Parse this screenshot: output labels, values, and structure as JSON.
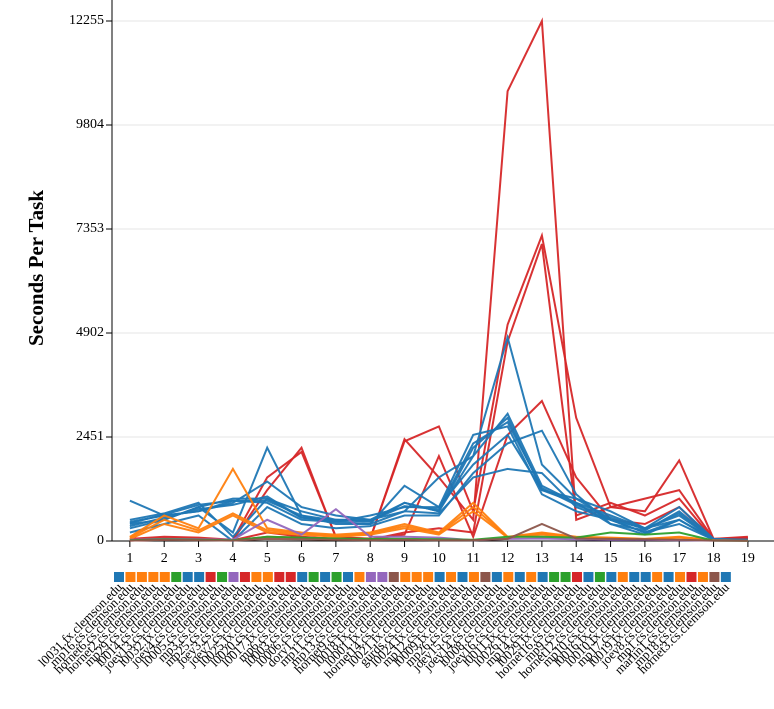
{
  "chart_data": {
    "type": "line",
    "y_label": "Seconds Per Task",
    "x": [
      1,
      2,
      3,
      4,
      5,
      6,
      7,
      8,
      9,
      10,
      11,
      12,
      13,
      14,
      15,
      16,
      17,
      18,
      19
    ],
    "xlim": [
      0.48,
      19.76
    ],
    "ylim": [
      0,
      12750
    ],
    "yticks": [
      0,
      2451,
      4902,
      7353,
      9804,
      12255
    ],
    "grid": true,
    "series": [
      {
        "color": "#d62728",
        "values": [
          50,
          100,
          80,
          30,
          1500,
          2100,
          100,
          50,
          2400,
          1500,
          500,
          10600,
          12255,
          500,
          800,
          1000,
          1200,
          50,
          80
        ]
      },
      {
        "color": "#d62728",
        "values": [
          30,
          60,
          50,
          20,
          1200,
          2200,
          80,
          60,
          2350,
          2700,
          700,
          5100,
          7200,
          2900,
          800,
          700,
          1900,
          50,
          100
        ]
      },
      {
        "color": "#d62728",
        "values": [
          20,
          40,
          30,
          20,
          200,
          100,
          50,
          30,
          200,
          300,
          200,
          4700,
          7000,
          600,
          900,
          600,
          1000,
          30,
          60
        ]
      },
      {
        "color": "#d62728",
        "values": [
          10,
          30,
          40,
          10,
          100,
          80,
          60,
          40,
          150,
          2000,
          100,
          2500,
          3300,
          1500,
          500,
          400,
          800,
          20,
          40
        ]
      },
      {
        "color": "#1f77b4",
        "values": [
          950,
          600,
          700,
          900,
          1400,
          800,
          600,
          500,
          700,
          1500,
          2000,
          4800,
          1800,
          1000,
          700,
          300,
          800,
          50,
          30
        ]
      },
      {
        "color": "#1f77b4",
        "values": [
          400,
          500,
          800,
          1000,
          1000,
          700,
          500,
          500,
          900,
          700,
          2000,
          3000,
          1300,
          900,
          600,
          300,
          600,
          40,
          20
        ]
      },
      {
        "color": "#1f77b4",
        "values": [
          300,
          500,
          800,
          200,
          2200,
          600,
          400,
          400,
          1300,
          800,
          1800,
          2500,
          1200,
          1000,
          500,
          200,
          500,
          30,
          20
        ]
      },
      {
        "color": "#1f77b4",
        "values": [
          500,
          650,
          900,
          100,
          1000,
          550,
          450,
          600,
          800,
          800,
          2500,
          2700,
          1100,
          700,
          500,
          300,
          500,
          40,
          30
        ]
      },
      {
        "color": "#1f77b4",
        "values": [
          450,
          600,
          700,
          950,
          900,
          500,
          450,
          400,
          700,
          650,
          1500,
          1700,
          1600,
          800,
          500,
          200,
          400,
          30,
          20
        ]
      },
      {
        "color": "#1f77b4",
        "values": [
          350,
          550,
          750,
          850,
          1050,
          550,
          500,
          450,
          900,
          700,
          2200,
          2900,
          1200,
          900,
          400,
          250,
          700,
          40,
          25
        ]
      },
      {
        "color": "#1f77b4",
        "values": [
          200,
          400,
          600,
          0,
          800,
          400,
          300,
          350,
          600,
          600,
          1600,
          2300,
          2600,
          1100,
          400,
          150,
          500,
          30,
          20
        ]
      },
      {
        "color": "#1f77b4",
        "values": [
          420,
          620,
          850,
          950,
          950,
          600,
          480,
          480,
          820,
          750,
          2300,
          2800,
          1250,
          850,
          550,
          280,
          650,
          35,
          22
        ]
      },
      {
        "color": "#ff7f0e",
        "values": [
          100,
          600,
          300,
          1700,
          300,
          200,
          150,
          200,
          400,
          200,
          900,
          100,
          200,
          100,
          80,
          50,
          100,
          20,
          10
        ]
      },
      {
        "color": "#ff7f0e",
        "values": [
          50,
          400,
          200,
          600,
          200,
          150,
          100,
          150,
          300,
          150,
          700,
          80,
          150,
          80,
          60,
          40,
          80,
          15,
          10
        ]
      },
      {
        "color": "#ff7f0e",
        "values": [
          80,
          500,
          250,
          650,
          250,
          180,
          120,
          180,
          350,
          180,
          800,
          90,
          180,
          90,
          70,
          45,
          90,
          18,
          10
        ]
      },
      {
        "color": "#9467bd",
        "values": [
          30,
          50,
          40,
          30,
          500,
          150,
          750,
          100,
          100,
          80,
          20,
          50,
          60,
          40,
          30,
          30,
          20,
          10,
          5
        ]
      },
      {
        "color": "#2ca02c",
        "values": [
          20,
          40,
          30,
          20,
          100,
          80,
          60,
          50,
          50,
          40,
          30,
          100,
          100,
          80,
          200,
          150,
          200,
          10,
          5
        ]
      },
      {
        "color": "#8c564b",
        "values": [
          10,
          30,
          20,
          10,
          50,
          40,
          30,
          20,
          30,
          20,
          20,
          50,
          400,
          60,
          50,
          40,
          30,
          10,
          5
        ]
      }
    ],
    "hosts": [
      {
        "name": "l0031.fx.clemson.edu",
        "color": "#1f77b4"
      },
      {
        "name": "mp16.cs.clemson.edu",
        "color": "#ff7f0e"
      },
      {
        "name": "hornet6.cs.clemson.edu",
        "color": "#ff7f0e"
      },
      {
        "name": "hornet2.cs.clemson.edu",
        "color": "#ff7f0e"
      },
      {
        "name": "mp29.cs.clemson.edu",
        "color": "#ff7f0e"
      },
      {
        "name": "l0014.cs.clemson.edu",
        "color": "#2ca02c"
      },
      {
        "name": "joey13.cs.clemson.edu",
        "color": "#1f77b4"
      },
      {
        "name": "l0032.fx.clemson.edu",
        "color": "#1f77b4"
      },
      {
        "name": "joey4.cs.clemson.edu",
        "color": "#d62728"
      },
      {
        "name": "l0005.cs.clemson.edu",
        "color": "#2ca02c"
      },
      {
        "name": "mp3.cs.clemson.edu",
        "color": "#9467bd"
      },
      {
        "name": "mp25.cs.clemson.edu",
        "color": "#d62728"
      },
      {
        "name": "joey3.cs.clemson.edu",
        "color": "#ff7f0e"
      },
      {
        "name": "joey7.cs.clemson.edu",
        "color": "#ff7f0e"
      },
      {
        "name": "l0025.fx.clemson.edu",
        "color": "#d62728"
      },
      {
        "name": "l0020.cs.clemson.edu",
        "color": "#d62728"
      },
      {
        "name": "l0017.fx.clemson.edu",
        "color": "#1f77b4"
      },
      {
        "name": "mp6.cs.clemson.edu",
        "color": "#2ca02c"
      },
      {
        "name": "l0003.cs.clemson.edu",
        "color": "#1f77b4"
      },
      {
        "name": "l0006.cs.clemson.edu",
        "color": "#2ca02c"
      },
      {
        "name": "dory1.cs.clemson.edu",
        "color": "#1f77b4"
      },
      {
        "name": "mp11.cs.clemson.edu",
        "color": "#ff7f0e"
      },
      {
        "name": "mp13.cs.clemson.edu",
        "color": "#9467bd"
      },
      {
        "name": "hornet9.cs.clemson.edu",
        "color": "#9467bd"
      },
      {
        "name": "l0018.fx.clemson.edu",
        "color": "#8c564b"
      },
      {
        "name": "l0001.fx.clemson.edu",
        "color": "#ff7f0e"
      },
      {
        "name": "hornet14.cs.clemson.edu",
        "color": "#ff7f0e"
      },
      {
        "name": "l0021.fx.clemson.edu",
        "color": "#ff7f0e"
      },
      {
        "name": "gurds.cs.clemson.edu",
        "color": "#1f77b4"
      },
      {
        "name": "l0024.fx.clemson.edu",
        "color": "#ff7f0e"
      },
      {
        "name": "mp12.cs.clemson.edu",
        "color": "#1f77b4"
      },
      {
        "name": "l0009.fx.clemson.edu",
        "color": "#ff7f0e"
      },
      {
        "name": "mp26.cs.clemson.edu",
        "color": "#8c564b"
      },
      {
        "name": "joey15.cs.clemson.edu",
        "color": "#1f77b4"
      },
      {
        "name": "joey14.cs.clemson.edu",
        "color": "#ff7f0e"
      },
      {
        "name": "l0008.cs.clemson.edu",
        "color": "#1f77b4"
      },
      {
        "name": "joey16.cs.clemson.edu",
        "color": "#ff7f0e"
      },
      {
        "name": "l0011.fx.clemson.edu",
        "color": "#1f77b4"
      },
      {
        "name": "l0026.fx.clemson.edu",
        "color": "#2ca02c"
      },
      {
        "name": "mp14.cs.clemson.edu",
        "color": "#2ca02c"
      },
      {
        "name": "l0029.fx.clemson.edu",
        "color": "#d62728"
      },
      {
        "name": "hornet16.cs.clemson.edu",
        "color": "#1f77b4"
      },
      {
        "name": "mp9.cs.clemson.edu",
        "color": "#2ca02c"
      },
      {
        "name": "hornet12.cs.clemson.edu",
        "color": "#1f77b4"
      },
      {
        "name": "mp10.cs.clemson.edu",
        "color": "#ff7f0e"
      },
      {
        "name": "l0016.fx.clemson.edu",
        "color": "#1f77b4"
      },
      {
        "name": "l0010.fx.clemson.edu",
        "color": "#1f77b4"
      },
      {
        "name": "mp17.cs.clemson.edu",
        "color": "#ff7f0e"
      },
      {
        "name": "l0019.fx.clemson.edu",
        "color": "#1f77b4"
      },
      {
        "name": "joey8.cs.clemson.edu",
        "color": "#ff7f0e"
      },
      {
        "name": "mp1.cs.clemson.edu",
        "color": "#d62728"
      },
      {
        "name": "marlin1.cs.clemson.edu",
        "color": "#ff7f0e"
      },
      {
        "name": "mp18.cs.clemson.edu",
        "color": "#8c564b"
      },
      {
        "name": "hornet3.cs.clemson.edu",
        "color": "#1f77b4"
      }
    ]
  }
}
